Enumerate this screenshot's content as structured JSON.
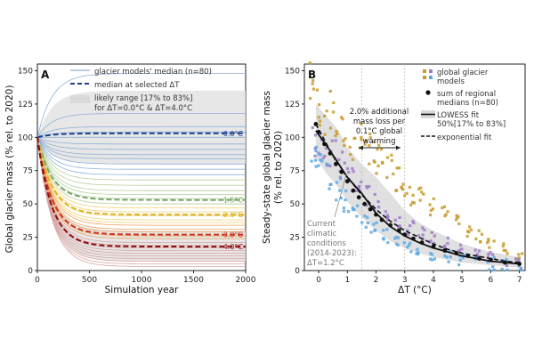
{
  "chart_data": [
    {
      "panel": "A",
      "type": "line",
      "xlabel": "Simulation year",
      "ylabel": "Global glacier mass (% rel. to 2020)",
      "xlim": [
        0,
        2000
      ],
      "ylim": [
        0,
        155
      ],
      "xticks": [
        0,
        500,
        1000,
        1500,
        2000
      ],
      "yticks": [
        0,
        25,
        50,
        75,
        100,
        125,
        150
      ],
      "legend": {
        "placement": "top-right",
        "entries": [
          "glacier models' median (n=80)",
          "median at selected ΔT",
          "likely range [17% to 83%]",
          "for ΔT=0.0°C & ΔT=4.0°C"
        ]
      },
      "highlighted": [
        {
          "label": "0.0°C",
          "end_value": 103,
          "color": "#1f3f8f"
        },
        {
          "label": "1.5°C",
          "end_value": 53,
          "color": "#7aa66a"
        },
        {
          "label": "2.0°C",
          "end_value": 42,
          "color": "#e0b422"
        },
        {
          "label": "3.0°C",
          "end_value": 27,
          "color": "#c8361f"
        },
        {
          "label": "4.0°C",
          "end_value": 18,
          "color": "#8a1010"
        }
      ],
      "model_end_values": [
        148,
        118,
        108,
        104,
        100,
        95,
        91,
        87,
        84,
        80,
        76,
        72,
        68,
        64,
        60,
        57,
        54,
        50,
        47,
        44,
        41,
        38,
        36,
        34,
        31,
        29,
        26,
        24,
        21,
        19,
        17,
        15,
        13,
        11,
        9,
        7,
        5,
        3
      ],
      "ranges": [
        {
          "label": "ΔT=0.0°C",
          "low_end": 80,
          "high_end": 135
        },
        {
          "label": "ΔT=4.0°C",
          "low_end": 7,
          "high_end": 30
        }
      ]
    },
    {
      "panel": "B",
      "type": "scatter",
      "xlabel": "ΔT (°C)",
      "ylabel": "Steady-state global glacier mass (% rel. to 2020)",
      "xlim": [
        -0.5,
        7.2
      ],
      "ylim": [
        0,
        155
      ],
      "xticks": [
        0,
        1,
        2,
        3,
        4,
        5,
        6,
        7
      ],
      "yticks": [
        0,
        25,
        50,
        75,
        100,
        125,
        150
      ],
      "legend": {
        "placement": "top-right",
        "entries": [
          "global glacier models",
          "sum of regional medians (n=80)",
          "LOWESS fit 50%[17% to 83%]",
          "exponential fit"
        ]
      },
      "annotations": [
        "2.0% additional mass loss per 0.1°C global warming",
        "Current climatic conditions (2014-2023): ΔT=1.2°C"
      ],
      "series": [
        {
          "name": "sum of regional medians (n=80)",
          "x": [
            -0.1,
            0.0,
            0.2,
            0.4,
            0.6,
            0.8,
            1.0,
            1.2,
            1.4,
            1.6,
            1.8,
            2.0,
            2.2,
            2.5,
            2.8,
            3.0,
            3.3,
            3.6,
            4.0,
            4.4,
            4.8,
            5.2,
            5.6,
            6.0,
            6.5,
            7.0
          ],
          "y": [
            110,
            104,
            95,
            88,
            80,
            74,
            67,
            60,
            55,
            50,
            46,
            42,
            38,
            34,
            30,
            27,
            24,
            21,
            18,
            15,
            13,
            11,
            9,
            8,
            6,
            5
          ]
        },
        {
          "name": "LOWESS fit 50%[17% to 83%]",
          "x": [
            -0.1,
            0.3,
            0.7,
            1.0,
            1.5,
            2.0,
            2.5,
            3.0,
            3.5,
            4.0,
            4.5,
            5.0,
            5.5,
            6.0,
            6.5,
            7.0
          ],
          "y": [
            105,
            93,
            80,
            70,
            58,
            43,
            33,
            26,
            21,
            17,
            14,
            11,
            9,
            7,
            6,
            5
          ],
          "low": [
            85,
            72,
            62,
            52,
            40,
            30,
            22,
            17,
            13,
            10,
            8,
            6,
            5,
            4,
            3,
            2
          ],
          "high": [
            125,
            115,
            105,
            92,
            80,
            70,
            58,
            45,
            36,
            30,
            25,
            20,
            17,
            14,
            12,
            10
          ]
        },
        {
          "name": "exponential fit",
          "x": [
            -0.1,
            0.5,
            1.0,
            1.5,
            2.0,
            2.5,
            3.0,
            3.5,
            4.0,
            4.5,
            5.0,
            5.5,
            6.0,
            6.5,
            7.0
          ],
          "y": [
            110,
            86,
            70,
            57,
            46,
            37,
            30,
            25,
            20,
            16,
            13,
            11,
            9,
            7,
            6
          ]
        }
      ],
      "scatter_clouds": [
        {
          "name": "orange",
          "color": "#c89a2a",
          "center": [
            [
              -0.2,
              140
            ],
            [
              0.0,
              125
            ],
            [
              0.3,
              118
            ],
            [
              0.6,
              110
            ],
            [
              0.9,
              102
            ],
            [
              1.2,
              95
            ],
            [
              1.5,
              100
            ],
            [
              1.7,
              90
            ],
            [
              2.0,
              85
            ],
            [
              2.2,
              82
            ],
            [
              2.5,
              78
            ],
            [
              2.8,
              70
            ],
            [
              3.0,
              65
            ],
            [
              3.3,
              58
            ],
            [
              3.6,
              55
            ],
            [
              4.0,
              48
            ],
            [
              4.4,
              42
            ],
            [
              4.8,
              36
            ],
            [
              5.2,
              30
            ],
            [
              5.6,
              25
            ],
            [
              6.0,
              22
            ],
            [
              6.5,
              16
            ],
            [
              7.0,
              12
            ]
          ]
        },
        {
          "name": "purple",
          "color": "#a07ac8",
          "center": [
            [
              -0.1,
              100
            ],
            [
              0.2,
              92
            ],
            [
              0.5,
              86
            ],
            [
              0.8,
              78
            ],
            [
              1.1,
              72
            ],
            [
              1.4,
              62
            ],
            [
              1.7,
              56
            ],
            [
              2.0,
              50
            ],
            [
              2.4,
              44
            ],
            [
              2.8,
              38
            ],
            [
              3.2,
              32
            ],
            [
              3.6,
              28
            ],
            [
              4.0,
              24
            ],
            [
              4.5,
              20
            ],
            [
              5.0,
              16
            ],
            [
              5.5,
              13
            ],
            [
              6.0,
              10
            ],
            [
              6.5,
              8
            ],
            [
              7.0,
              6
            ]
          ]
        },
        {
          "name": "blue",
          "color": "#5aa9e6",
          "center": [
            [
              -0.2,
              85
            ],
            [
              0.1,
              80
            ],
            [
              0.4,
              70
            ],
            [
              0.7,
              62
            ],
            [
              1.0,
              52
            ],
            [
              1.3,
              46
            ],
            [
              1.6,
              38
            ],
            [
              1.9,
              32
            ],
            [
              2.3,
              26
            ],
            [
              2.7,
              22
            ],
            [
              3.1,
              18
            ],
            [
              3.5,
              16
            ],
            [
              4.0,
              12
            ],
            [
              4.5,
              10
            ],
            [
              5.0,
              8
            ],
            [
              5.5,
              7
            ],
            [
              6.0,
              5
            ],
            [
              6.5,
              4
            ],
            [
              7.0,
              3
            ]
          ]
        }
      ]
    }
  ],
  "labels": {
    "panel_a": "A",
    "panel_b": "B",
    "ylabel_a": "Global glacier mass (% rel. to 2020)",
    "xlabel_a": "Simulation year",
    "ylabel_b1": "Steady-state global glacier mass",
    "ylabel_b2": "(% rel. to 2020)",
    "xlabel_b": "ΔT (°C)",
    "legend_a1": "glacier models' median (n=80)",
    "legend_a2": "median at selected ΔT",
    "legend_a3": "likely range [17% to 83%]",
    "legend_a4": "for ΔT=0.0°C & ΔT=4.0°C",
    "legend_b1a": "global glacier",
    "legend_b1b": "models",
    "legend_b2a": "sum of regional",
    "legend_b2b": "medians (n=80)",
    "legend_b3a": "LOWESS fit",
    "legend_b3b": "50%[17% to 83%]",
    "legend_b4": "exponential fit",
    "annot_b_1": "2.0% additional",
    "annot_b_2": "mass loss per",
    "annot_b_3": "0.1°C global",
    "annot_b_4": "warming",
    "current_1": "Current",
    "current_2": "climatic",
    "current_3": "conditions",
    "current_4": "(2014-2023):",
    "current_5": "ΔT=1.2°C",
    "lbl_0": "0.0°C",
    "lbl_15": "1.5°C",
    "lbl_20": "2.0°C",
    "lbl_30": "3.0°C",
    "lbl_40": "4.0°C"
  }
}
